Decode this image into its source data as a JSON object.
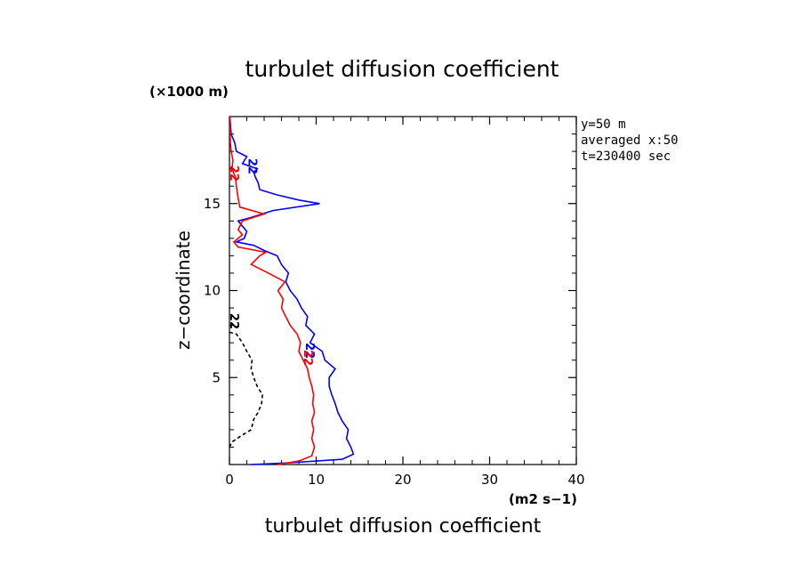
{
  "chart_data": {
    "type": "line",
    "title": "turbulet diffusion coefficient",
    "xlabel": "turbulet diffusion coefficient",
    "xunit": "(m2 s−1)",
    "ylabel": "z−coordinate",
    "yunit": "(×1000 m)",
    "xlim": [
      0,
      40
    ],
    "ylim": [
      0,
      20
    ],
    "xticks": [
      0,
      10,
      20,
      30,
      40
    ],
    "yticks": [
      5,
      10,
      15
    ],
    "annotations": [
      "y=50 m",
      "averaged  x:50",
      "t=230400 sec"
    ],
    "series": [
      {
        "name": "blue",
        "color": "#0000ff",
        "dash": "",
        "label": "22",
        "label_at": [
          8.8,
          7.0
        ],
        "label_at2": [
          2.2,
          17.6
        ],
        "points": [
          [
            2.5,
            0.0
          ],
          [
            7.0,
            0.1
          ],
          [
            10.0,
            0.2
          ],
          [
            13.0,
            0.3
          ],
          [
            14.3,
            0.6
          ],
          [
            14.0,
            1.0
          ],
          [
            13.5,
            1.5
          ],
          [
            13.7,
            2.0
          ],
          [
            13.0,
            2.5
          ],
          [
            12.5,
            3.0
          ],
          [
            12.2,
            3.5
          ],
          [
            11.8,
            4.0
          ],
          [
            11.5,
            4.5
          ],
          [
            11.5,
            5.0
          ],
          [
            12.2,
            5.5
          ],
          [
            11.0,
            6.0
          ],
          [
            10.7,
            6.5
          ],
          [
            9.3,
            7.0
          ],
          [
            9.8,
            7.5
          ],
          [
            8.8,
            8.0
          ],
          [
            9.0,
            8.5
          ],
          [
            8.3,
            9.0
          ],
          [
            7.8,
            9.5
          ],
          [
            7.0,
            10.0
          ],
          [
            6.5,
            10.5
          ],
          [
            6.8,
            11.0
          ],
          [
            6.0,
            11.5
          ],
          [
            5.5,
            12.0
          ],
          [
            4.0,
            12.3
          ],
          [
            2.8,
            12.6
          ],
          [
            0.8,
            12.8
          ],
          [
            1.7,
            13.0
          ],
          [
            2.0,
            13.4
          ],
          [
            1.5,
            13.7
          ],
          [
            1.0,
            14.0
          ],
          [
            2.5,
            14.2
          ],
          [
            5.0,
            14.6
          ],
          [
            10.4,
            15.0
          ],
          [
            8.0,
            15.2
          ],
          [
            5.5,
            15.5
          ],
          [
            3.5,
            15.8
          ],
          [
            3.3,
            16.2
          ],
          [
            3.0,
            16.5
          ],
          [
            2.8,
            16.8
          ],
          [
            3.2,
            17.0
          ],
          [
            1.5,
            17.3
          ],
          [
            2.0,
            17.7
          ],
          [
            0.8,
            18.0
          ],
          [
            0.6,
            18.5
          ],
          [
            0.2,
            19.0
          ],
          [
            0.05,
            20.0
          ]
        ]
      },
      {
        "name": "red",
        "color": "#ff0000",
        "dash": "",
        "label": "22",
        "label_at": [
          8.6,
          6.6
        ],
        "label_at2": [
          0.1,
          17.2
        ],
        "points": [
          [
            5.5,
            0.0
          ],
          [
            8.0,
            0.2
          ],
          [
            9.5,
            0.5
          ],
          [
            9.8,
            1.0
          ],
          [
            9.5,
            1.5
          ],
          [
            9.7,
            2.0
          ],
          [
            9.5,
            2.5
          ],
          [
            9.8,
            3.0
          ],
          [
            9.6,
            3.5
          ],
          [
            9.7,
            4.0
          ],
          [
            9.5,
            4.5
          ],
          [
            9.2,
            5.0
          ],
          [
            9.0,
            5.5
          ],
          [
            8.5,
            6.0
          ],
          [
            8.0,
            6.5
          ],
          [
            8.2,
            7.0
          ],
          [
            7.8,
            7.5
          ],
          [
            7.0,
            8.0
          ],
          [
            6.5,
            8.5
          ],
          [
            6.0,
            9.0
          ],
          [
            6.2,
            9.5
          ],
          [
            5.6,
            10.0
          ],
          [
            6.4,
            10.5
          ],
          [
            4.5,
            11.0
          ],
          [
            2.5,
            11.5
          ],
          [
            3.5,
            12.0
          ],
          [
            4.2,
            12.2
          ],
          [
            1.0,
            12.5
          ],
          [
            0.5,
            12.8
          ],
          [
            1.5,
            13.2
          ],
          [
            1.0,
            13.5
          ],
          [
            1.5,
            14.0
          ],
          [
            4.0,
            14.4
          ],
          [
            1.2,
            14.8
          ],
          [
            1.0,
            15.3
          ],
          [
            0.8,
            16.0
          ],
          [
            0.7,
            16.5
          ],
          [
            0.3,
            17.0
          ],
          [
            0.4,
            17.5
          ],
          [
            0.2,
            18.0
          ],
          [
            0.1,
            18.5
          ],
          [
            0.05,
            20.0
          ]
        ]
      },
      {
        "name": "black",
        "color": "#000000",
        "dash": "4,3",
        "label": "22",
        "label_at": [
          0.1,
          8.7
        ],
        "points": [
          [
            0.0,
            1.0
          ],
          [
            0.3,
            1.3
          ],
          [
            1.5,
            1.7
          ],
          [
            2.5,
            2.0
          ],
          [
            2.8,
            2.6
          ],
          [
            3.3,
            3.0
          ],
          [
            3.7,
            3.5
          ],
          [
            3.8,
            4.0
          ],
          [
            3.2,
            4.5
          ],
          [
            2.8,
            5.0
          ],
          [
            2.5,
            5.5
          ],
          [
            2.6,
            6.0
          ],
          [
            2.0,
            6.5
          ],
          [
            1.5,
            7.0
          ],
          [
            0.8,
            7.5
          ],
          [
            0.0,
            7.6
          ]
        ]
      }
    ]
  }
}
